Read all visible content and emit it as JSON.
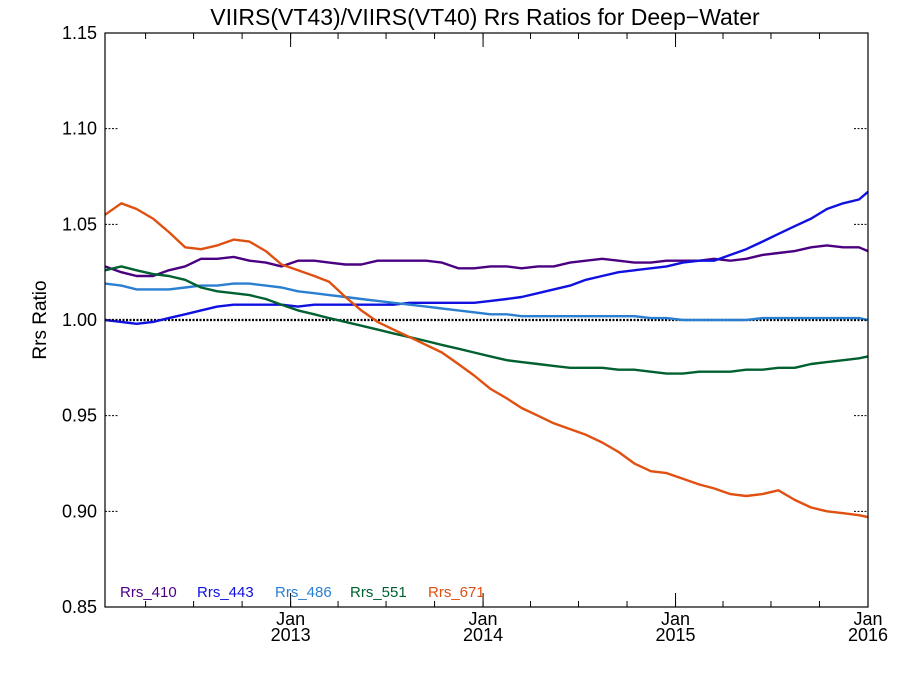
{
  "chart_data": {
    "type": "line",
    "title": "VIIRS(VT43)/VIIRS(VT40)  Rrs Ratios for Deep−Water",
    "xlabel": "",
    "ylabel": "Rrs Ratio",
    "xlim": [
      "2012-01-15",
      "2016-01-01"
    ],
    "ylim": [
      0.85,
      1.15
    ],
    "yticks": [
      "0.85",
      "0.90",
      "0.95",
      "1.00",
      "1.05",
      "1.10",
      "1.15"
    ],
    "xticks": [
      {
        "date": "2013-01-01",
        "label": [
          "Jan",
          "2013"
        ]
      },
      {
        "date": "2014-01-01",
        "label": [
          "Jan",
          "2014"
        ]
      },
      {
        "date": "2015-01-01",
        "label": [
          "Jan",
          "2015"
        ]
      },
      {
        "date": "2016-01-01",
        "label": [
          "Jan",
          "2016"
        ]
      }
    ],
    "reference_line": 1.0,
    "grid": false,
    "legend_placement": "bottom-left",
    "series": [
      {
        "name": "Rrs_410",
        "color": "#4b0082",
        "x": [
          "2012-01-15",
          "2012-02-15",
          "2012-03-15",
          "2012-04-15",
          "2012-05-15",
          "2012-06-15",
          "2012-07-15",
          "2012-08-15",
          "2012-09-15",
          "2012-10-15",
          "2012-11-15",
          "2012-12-15",
          "2013-01-15",
          "2013-02-15",
          "2013-03-15",
          "2013-04-15",
          "2013-05-15",
          "2013-06-15",
          "2013-07-15",
          "2013-08-15",
          "2013-09-15",
          "2013-10-15",
          "2013-11-15",
          "2013-12-15",
          "2014-01-15",
          "2014-02-15",
          "2014-03-15",
          "2014-04-15",
          "2014-05-15",
          "2014-06-15",
          "2014-07-15",
          "2014-08-15",
          "2014-09-15",
          "2014-10-15",
          "2014-11-15",
          "2014-12-15",
          "2015-01-15",
          "2015-02-15",
          "2015-03-15",
          "2015-04-15",
          "2015-05-15",
          "2015-06-15",
          "2015-07-15",
          "2015-08-15",
          "2015-09-15",
          "2015-10-15",
          "2015-11-15",
          "2015-12-15",
          "2016-01-01"
        ],
        "y": [
          1.028,
          1.025,
          1.023,
          1.023,
          1.026,
          1.028,
          1.032,
          1.032,
          1.033,
          1.031,
          1.03,
          1.028,
          1.031,
          1.031,
          1.03,
          1.029,
          1.029,
          1.031,
          1.031,
          1.031,
          1.031,
          1.03,
          1.027,
          1.027,
          1.028,
          1.028,
          1.027,
          1.028,
          1.028,
          1.03,
          1.031,
          1.032,
          1.031,
          1.03,
          1.03,
          1.031,
          1.031,
          1.031,
          1.032,
          1.031,
          1.032,
          1.034,
          1.035,
          1.036,
          1.038,
          1.039,
          1.038,
          1.038,
          1.036
        ]
      },
      {
        "name": "Rrs_443",
        "color": "#1010e0",
        "x": [
          "2012-01-15",
          "2012-02-15",
          "2012-03-15",
          "2012-04-15",
          "2012-05-15",
          "2012-06-15",
          "2012-07-15",
          "2012-08-15",
          "2012-09-15",
          "2012-10-15",
          "2012-11-15",
          "2012-12-15",
          "2013-01-15",
          "2013-02-15",
          "2013-03-15",
          "2013-04-15",
          "2013-05-15",
          "2013-06-15",
          "2013-07-15",
          "2013-08-15",
          "2013-09-15",
          "2013-10-15",
          "2013-11-15",
          "2013-12-15",
          "2014-01-15",
          "2014-02-15",
          "2014-03-15",
          "2014-04-15",
          "2014-05-15",
          "2014-06-15",
          "2014-07-15",
          "2014-08-15",
          "2014-09-15",
          "2014-10-15",
          "2014-11-15",
          "2014-12-15",
          "2015-01-15",
          "2015-02-15",
          "2015-03-15",
          "2015-04-15",
          "2015-05-15",
          "2015-06-15",
          "2015-07-15",
          "2015-08-15",
          "2015-09-15",
          "2015-10-15",
          "2015-11-15",
          "2015-12-15",
          "2016-01-01"
        ],
        "y": [
          1.0,
          0.999,
          0.998,
          0.999,
          1.001,
          1.003,
          1.005,
          1.007,
          1.008,
          1.008,
          1.008,
          1.008,
          1.007,
          1.008,
          1.008,
          1.008,
          1.008,
          1.008,
          1.008,
          1.009,
          1.009,
          1.009,
          1.009,
          1.009,
          1.01,
          1.011,
          1.012,
          1.014,
          1.016,
          1.018,
          1.021,
          1.023,
          1.025,
          1.026,
          1.027,
          1.028,
          1.03,
          1.031,
          1.031,
          1.034,
          1.037,
          1.041,
          1.045,
          1.049,
          1.053,
          1.058,
          1.061,
          1.063,
          1.067
        ]
      },
      {
        "name": "Rrs_486",
        "color": "#2a7fd0",
        "x": [
          "2012-01-15",
          "2012-02-15",
          "2012-03-15",
          "2012-04-15",
          "2012-05-15",
          "2012-06-15",
          "2012-07-15",
          "2012-08-15",
          "2012-09-15",
          "2012-10-15",
          "2012-11-15",
          "2012-12-15",
          "2013-01-15",
          "2013-02-15",
          "2013-03-15",
          "2013-04-15",
          "2013-05-15",
          "2013-06-15",
          "2013-07-15",
          "2013-08-15",
          "2013-09-15",
          "2013-10-15",
          "2013-11-15",
          "2013-12-15",
          "2014-01-15",
          "2014-02-15",
          "2014-03-15",
          "2014-04-15",
          "2014-05-15",
          "2014-06-15",
          "2014-07-15",
          "2014-08-15",
          "2014-09-15",
          "2014-10-15",
          "2014-11-15",
          "2014-12-15",
          "2015-01-15",
          "2015-02-15",
          "2015-03-15",
          "2015-04-15",
          "2015-05-15",
          "2015-06-15",
          "2015-07-15",
          "2015-08-15",
          "2015-09-15",
          "2015-10-15",
          "2015-11-15",
          "2015-12-15",
          "2016-01-01"
        ],
        "y": [
          1.019,
          1.018,
          1.016,
          1.016,
          1.016,
          1.017,
          1.018,
          1.018,
          1.019,
          1.019,
          1.018,
          1.017,
          1.015,
          1.014,
          1.013,
          1.012,
          1.011,
          1.01,
          1.009,
          1.008,
          1.007,
          1.006,
          1.005,
          1.004,
          1.003,
          1.003,
          1.002,
          1.002,
          1.002,
          1.002,
          1.002,
          1.002,
          1.002,
          1.002,
          1.001,
          1.001,
          1.0,
          1.0,
          1.0,
          1.0,
          1.0,
          1.001,
          1.001,
          1.001,
          1.001,
          1.001,
          1.001,
          1.001,
          1.0
        ]
      },
      {
        "name": "Rrs_551",
        "color": "#006030",
        "x": [
          "2012-01-15",
          "2012-02-15",
          "2012-03-15",
          "2012-04-15",
          "2012-05-15",
          "2012-06-15",
          "2012-07-15",
          "2012-08-15",
          "2012-09-15",
          "2012-10-15",
          "2012-11-15",
          "2012-12-15",
          "2013-01-15",
          "2013-02-15",
          "2013-03-15",
          "2013-04-15",
          "2013-05-15",
          "2013-06-15",
          "2013-07-15",
          "2013-08-15",
          "2013-09-15",
          "2013-10-15",
          "2013-11-15",
          "2013-12-15",
          "2014-01-15",
          "2014-02-15",
          "2014-03-15",
          "2014-04-15",
          "2014-05-15",
          "2014-06-15",
          "2014-07-15",
          "2014-08-15",
          "2014-09-15",
          "2014-10-15",
          "2014-11-15",
          "2014-12-15",
          "2015-01-15",
          "2015-02-15",
          "2015-03-15",
          "2015-04-15",
          "2015-05-15",
          "2015-06-15",
          "2015-07-15",
          "2015-08-15",
          "2015-09-15",
          "2015-10-15",
          "2015-11-15",
          "2015-12-15",
          "2016-01-01"
        ],
        "y": [
          1.026,
          1.028,
          1.026,
          1.024,
          1.023,
          1.021,
          1.017,
          1.015,
          1.014,
          1.013,
          1.011,
          1.008,
          1.005,
          1.003,
          1.001,
          0.999,
          0.997,
          0.995,
          0.993,
          0.991,
          0.989,
          0.987,
          0.985,
          0.983,
          0.981,
          0.979,
          0.978,
          0.977,
          0.976,
          0.975,
          0.975,
          0.975,
          0.974,
          0.974,
          0.973,
          0.972,
          0.972,
          0.973,
          0.973,
          0.973,
          0.974,
          0.974,
          0.975,
          0.975,
          0.977,
          0.978,
          0.979,
          0.98,
          0.981
        ]
      },
      {
        "name": "Rrs_671",
        "color": "#e05010",
        "x": [
          "2012-01-15",
          "2012-02-15",
          "2012-03-15",
          "2012-04-15",
          "2012-05-15",
          "2012-06-15",
          "2012-07-15",
          "2012-08-15",
          "2012-09-15",
          "2012-10-15",
          "2012-11-15",
          "2012-12-15",
          "2013-01-15",
          "2013-02-15",
          "2013-03-15",
          "2013-04-15",
          "2013-05-15",
          "2013-06-15",
          "2013-07-15",
          "2013-08-15",
          "2013-09-15",
          "2013-10-15",
          "2013-11-15",
          "2013-12-15",
          "2014-01-15",
          "2014-02-15",
          "2014-03-15",
          "2014-04-15",
          "2014-05-15",
          "2014-06-15",
          "2014-07-15",
          "2014-08-15",
          "2014-09-15",
          "2014-10-15",
          "2014-11-15",
          "2014-12-15",
          "2015-01-15",
          "2015-02-15",
          "2015-03-15",
          "2015-04-15",
          "2015-05-15",
          "2015-06-15",
          "2015-07-15",
          "2015-08-15",
          "2015-09-15",
          "2015-10-15",
          "2015-11-15",
          "2015-12-15",
          "2016-01-01"
        ],
        "y": [
          1.055,
          1.061,
          1.058,
          1.053,
          1.046,
          1.038,
          1.037,
          1.039,
          1.042,
          1.041,
          1.036,
          1.029,
          1.026,
          1.023,
          1.02,
          1.012,
          1.005,
          0.999,
          0.995,
          0.991,
          0.987,
          0.983,
          0.977,
          0.971,
          0.964,
          0.959,
          0.954,
          0.95,
          0.946,
          0.943,
          0.94,
          0.936,
          0.931,
          0.925,
          0.921,
          0.92,
          0.917,
          0.914,
          0.912,
          0.909,
          0.908,
          0.909,
          0.911,
          0.906,
          0.902,
          0.9,
          0.899,
          0.898,
          0.897
        ]
      }
    ]
  }
}
